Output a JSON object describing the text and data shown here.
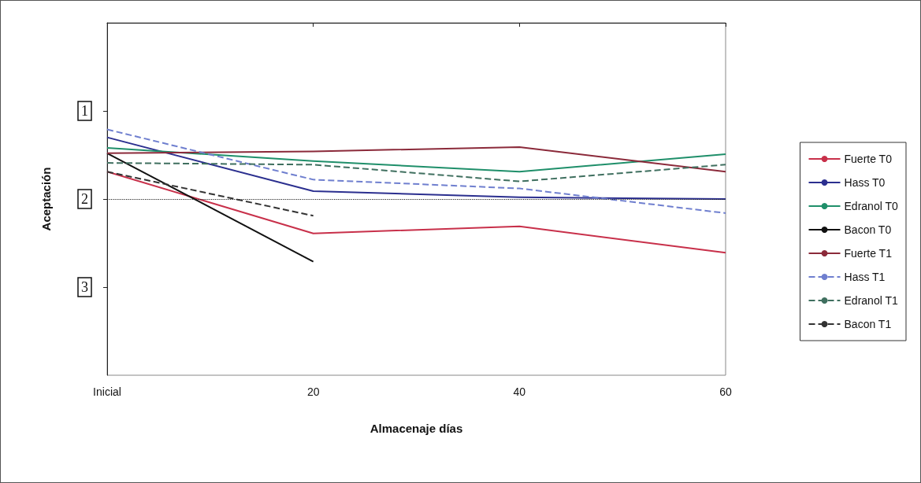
{
  "chart_data": {
    "type": "line",
    "xlabel": "Almacenaje días",
    "ylabel": "Aceptación",
    "categories": [
      "Inicial",
      "20",
      "40",
      "60"
    ],
    "ylim": [
      4,
      0
    ],
    "yticks": [
      1,
      2,
      3
    ],
    "grid": false,
    "legend": "right",
    "marker": "none",
    "series": [
      {
        "name": "Fuerte T0",
        "color": "#c8304a",
        "line_style": "solid",
        "values": [
          1.69,
          2.39,
          2.31,
          2.61
        ]
      },
      {
        "name": "Hass T0",
        "color": "#2b2f8f",
        "line_style": "solid",
        "values": [
          1.3,
          1.91,
          1.98,
          2.0
        ]
      },
      {
        "name": "Edranol T0",
        "color": "#1f8f6a",
        "line_style": "solid",
        "values": [
          1.42,
          1.57,
          1.69,
          1.49
        ]
      },
      {
        "name": "Bacon T0",
        "color": "#111111",
        "line_style": "solid",
        "values": [
          1.48,
          2.71,
          null,
          null
        ]
      },
      {
        "name": "Fuerte T1",
        "color": "#8b2a3a",
        "line_style": "solid",
        "values": [
          1.48,
          1.46,
          1.41,
          1.69
        ]
      },
      {
        "name": "Hass T1",
        "color": "#6f7fcf",
        "line_style": "dashed",
        "values": [
          1.21,
          1.78,
          1.88,
          2.16
        ]
      },
      {
        "name": "Edranol T1",
        "color": "#3f6f5f",
        "line_style": "dashed",
        "values": [
          1.59,
          1.61,
          1.8,
          1.61
        ]
      },
      {
        "name": "Bacon T1",
        "color": "#333333",
        "line_style": "dashed",
        "values": [
          1.69,
          2.19,
          null,
          null
        ]
      }
    ],
    "ref_lines": [
      {
        "axis": "y",
        "value": 2,
        "color": "#222222",
        "line_style": "dotted"
      }
    ]
  }
}
